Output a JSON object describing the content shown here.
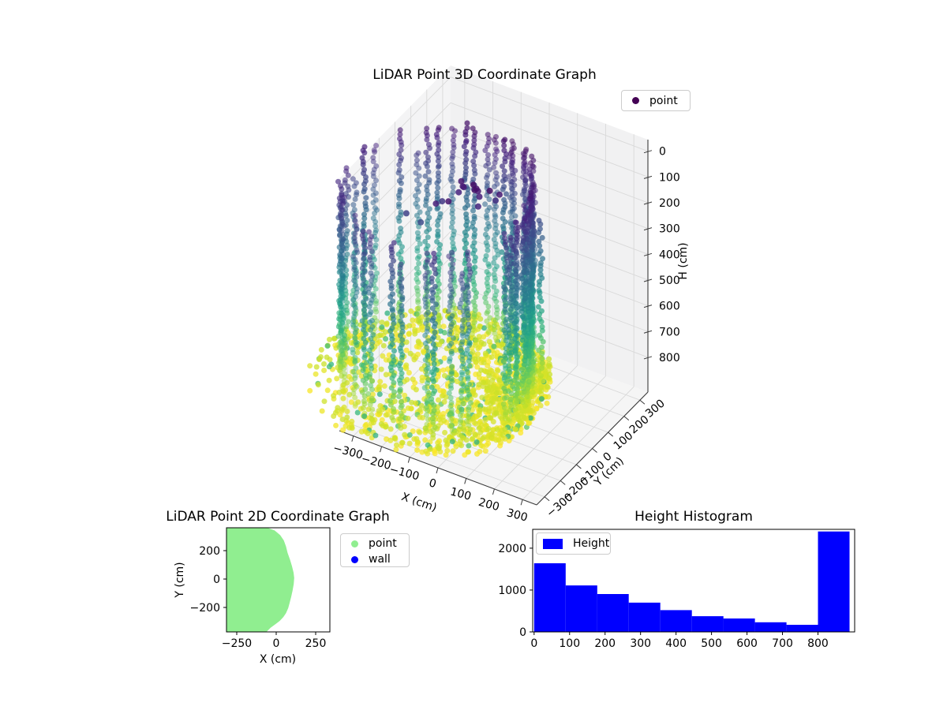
{
  "plot3d": {
    "title": "LiDAR Point 3D Coordinate Graph",
    "xlabel": "X (cm)",
    "ylabel": "Y (cm)",
    "zlabel": "H (cm)",
    "legend": {
      "point": "point"
    }
  },
  "plot2d": {
    "title": "LiDAR Point 2D Coordinate Graph",
    "xlabel": "X (cm)",
    "ylabel": "Y (cm)",
    "legend": {
      "point": "point",
      "wall": "wall"
    }
  },
  "hist": {
    "title": "Height Histogram",
    "legend": {
      "height": "Height"
    }
  },
  "colors": {
    "point_green": "#90ee90",
    "wall_blue": "#0000ff",
    "bar_blue": "#0000ff",
    "legend_marker_3d": "#440154"
  },
  "chart_data": [
    {
      "type": "scatter",
      "name": "lidar-3d-pointcloud",
      "title": "LiDAR Point 3D Coordinate Graph",
      "xlabel": "X (cm)",
      "ylabel": "Y (cm)",
      "zlabel": "H (cm)",
      "xlim": [
        -350,
        350
      ],
      "ylim": [
        -350,
        350
      ],
      "zlim": [
        0,
        889
      ],
      "z_inverted": true,
      "legend": [
        "point"
      ],
      "xticks": [
        {
          "v": -300,
          "label": "−300"
        },
        {
          "v": -200,
          "label": "−200"
        },
        {
          "v": -100,
          "label": "−100"
        },
        {
          "v": 0,
          "label": "0"
        },
        {
          "v": 100,
          "label": "100"
        },
        {
          "v": 200,
          "label": "200"
        },
        {
          "v": 300,
          "label": "300"
        }
      ],
      "yticks": [
        {
          "v": -300,
          "label": "−300"
        },
        {
          "v": -200,
          "label": "−200"
        },
        {
          "v": -100,
          "label": "−100"
        },
        {
          "v": 0,
          "label": "0"
        },
        {
          "v": 100,
          "label": "100"
        },
        {
          "v": 200,
          "label": "200"
        },
        {
          "v": 300,
          "label": "300"
        }
      ],
      "zticks": [
        {
          "v": 0,
          "label": "0"
        },
        {
          "v": 100,
          "label": "100"
        },
        {
          "v": 200,
          "label": "200"
        },
        {
          "v": 300,
          "label": "300"
        },
        {
          "v": 400,
          "label": "400"
        },
        {
          "v": 500,
          "label": "500"
        },
        {
          "v": 600,
          "label": "600"
        },
        {
          "v": 700,
          "label": "700"
        },
        {
          "v": 800,
          "label": "800"
        }
      ],
      "cloud": {
        "center": [
          -60,
          -20
        ],
        "h_max": 889,
        "wall_columns": 52,
        "wall_h_step": 15,
        "wall_radius_by_deg": [
          [
            0,
            185
          ],
          [
            20,
            178
          ],
          [
            45,
            205
          ],
          [
            70,
            212
          ],
          [
            90,
            214
          ],
          [
            120,
            260
          ],
          [
            150,
            330
          ],
          [
            180,
            400
          ],
          [
            205,
            428
          ],
          [
            225,
            400
          ],
          [
            250,
            340
          ],
          [
            270,
            312
          ],
          [
            300,
            258
          ],
          [
            330,
            212
          ],
          [
            360,
            185
          ]
        ],
        "floor_points": 1300,
        "floor_h_range": [
          842,
          889
        ],
        "floor_radius_by_deg": [
          [
            0,
            215
          ],
          [
            45,
            245
          ],
          [
            90,
            330
          ],
          [
            135,
            430
          ],
          [
            180,
            490
          ],
          [
            205,
            520
          ],
          [
            225,
            490
          ],
          [
            270,
            375
          ],
          [
            315,
            280
          ],
          [
            360,
            215
          ]
        ],
        "outliers": [
          [
            -30,
            -55,
            60
          ],
          [
            -25,
            -45,
            95
          ],
          [
            -38,
            -60,
            45
          ],
          [
            -20,
            -62,
            120
          ],
          [
            -33,
            -40,
            80
          ],
          [
            -28,
            -70,
            55
          ],
          [
            -95,
            -35,
            70
          ],
          [
            -90,
            -28,
            95
          ],
          [
            -100,
            -42,
            110
          ],
          [
            -88,
            -38,
            85
          ],
          [
            -242,
            -120,
            200
          ],
          [
            -205,
            -95,
            235
          ],
          [
            -160,
            -40,
            170
          ],
          [
            -120,
            -150,
            95
          ],
          [
            -70,
            -160,
            60
          ],
          [
            20,
            -60,
            45
          ],
          [
            35,
            -25,
            75
          ],
          [
            -10,
            30,
            150
          ]
        ]
      }
    },
    {
      "type": "scatter",
      "name": "lidar-2d-footprint",
      "title": "LiDAR Point 2D Coordinate Graph",
      "xlabel": "X (cm)",
      "ylabel": "Y (cm)",
      "legend": [
        "point",
        "wall"
      ],
      "xticks": [
        {
          "v": -250,
          "label": "−250"
        },
        {
          "v": 0,
          "label": "0"
        },
        {
          "v": 250,
          "label": "250"
        }
      ],
      "yticks": [
        {
          "v": 200,
          "label": "200"
        },
        {
          "v": 0,
          "label": "0"
        },
        {
          "v": -200,
          "label": "−200"
        }
      ],
      "point_color": "#90ee90",
      "wall_color": "#0000ff",
      "boundary_cm": [
        [
          -330,
          365
        ],
        [
          -60,
          363
        ],
        [
          -10,
          342
        ],
        [
          25,
          310
        ],
        [
          48,
          272
        ],
        [
          62,
          230
        ],
        [
          72,
          185
        ],
        [
          88,
          135
        ],
        [
          100,
          90
        ],
        [
          110,
          45
        ],
        [
          114,
          8
        ],
        [
          111,
          -35
        ],
        [
          104,
          -80
        ],
        [
          95,
          -125
        ],
        [
          84,
          -172
        ],
        [
          76,
          -205
        ],
        [
          62,
          -240
        ],
        [
          45,
          -268
        ],
        [
          22,
          -295
        ],
        [
          -5,
          -318
        ],
        [
          -35,
          -342
        ],
        [
          -62,
          -372
        ],
        [
          -330,
          -375
        ]
      ]
    },
    {
      "type": "histogram",
      "name": "height-histogram",
      "title": "Height Histogram",
      "series": "Height",
      "bar_color": "#0000ff",
      "bin_start": 0,
      "bin_width": 88.9,
      "values": [
        1640,
        1110,
        905,
        700,
        520,
        375,
        320,
        230,
        170,
        2400
      ],
      "xticks": [
        0,
        100,
        200,
        300,
        400,
        500,
        600,
        700,
        800
      ],
      "yticks": [
        0,
        1000,
        2000
      ],
      "xlim": [
        -4,
        899
      ],
      "ylim": [
        0,
        2450
      ]
    }
  ]
}
